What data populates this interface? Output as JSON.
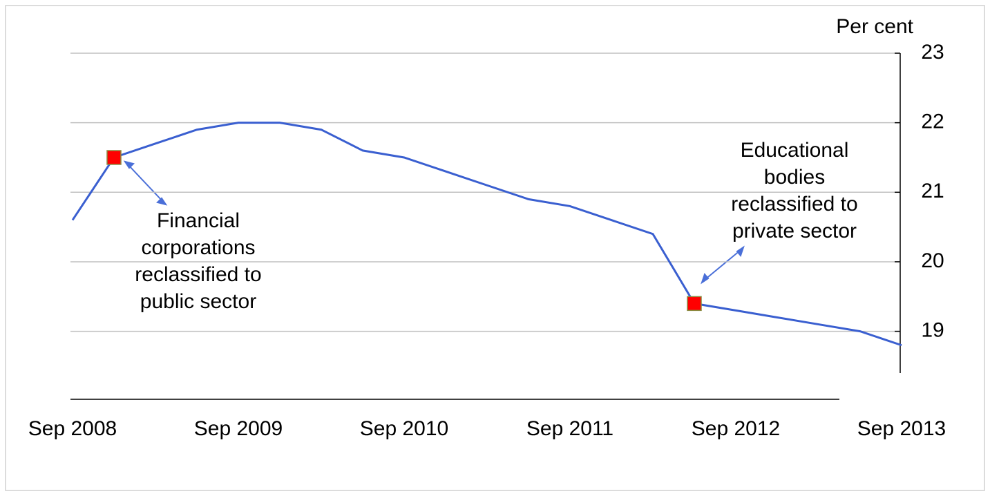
{
  "chart_data": {
    "type": "line",
    "y_axis_label": "Per cent",
    "categories": [
      "Sep 2008",
      null,
      null,
      null,
      "Sep 2009",
      null,
      null,
      null,
      "Sep 2010",
      null,
      null,
      null,
      "Sep 2011",
      null,
      null,
      null,
      "Sep 2012",
      null,
      null,
      null,
      "Sep 2013"
    ],
    "series": [
      {
        "color": "#3a5fd0",
        "values": [
          20.6,
          21.5,
          21.7,
          21.9,
          22.0,
          22.0,
          21.9,
          21.6,
          21.5,
          21.3,
          21.1,
          20.9,
          20.8,
          20.6,
          20.4,
          19.4,
          19.3,
          19.2,
          19.1,
          19.0,
          18.8
        ]
      }
    ],
    "markers": [
      1,
      15
    ],
    "marker_color": "#ff0000",
    "ylim": [
      18.4,
      23
    ],
    "yticks": [
      19,
      20,
      21,
      22,
      23
    ],
    "grid": true,
    "annotations": [
      {
        "lines": [
          "Financial",
          "corporations",
          "reclassified to",
          "public sector"
        ]
      },
      {
        "lines": [
          "Educational",
          "bodies",
          "reclassified to",
          "private sector"
        ]
      }
    ]
  }
}
